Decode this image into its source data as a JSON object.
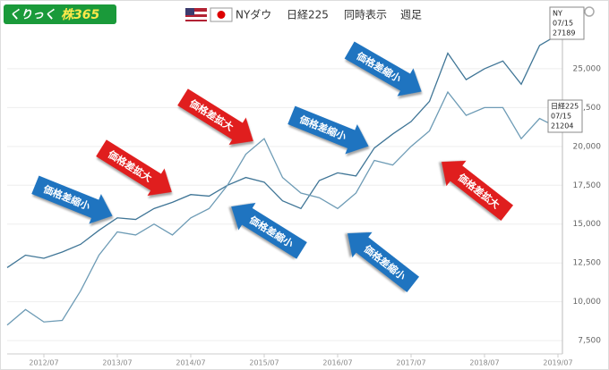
{
  "logo": {
    "left": "くりっく",
    "right": "株365"
  },
  "toolbar": [
    "NYダウ",
    "日経225",
    "同時表示",
    "週足"
  ],
  "chart_data": {
    "type": "line",
    "x": [
      "2012/01",
      "2012/04",
      "2012/07",
      "2012/10",
      "2013/01",
      "2013/04",
      "2013/07",
      "2013/10",
      "2014/01",
      "2014/04",
      "2014/07",
      "2014/10",
      "2015/01",
      "2015/04",
      "2015/07",
      "2015/10",
      "2016/01",
      "2016/04",
      "2016/07",
      "2016/10",
      "2017/01",
      "2017/04",
      "2017/07",
      "2017/10",
      "2018/01",
      "2018/04",
      "2018/07",
      "2018/10",
      "2019/01",
      "2019/04",
      "2019/07"
    ],
    "series": [
      {
        "name": "NY",
        "color": "#3f7596",
        "values": [
          12200,
          13000,
          12800,
          13200,
          13700,
          14600,
          15400,
          15300,
          16000,
          16400,
          16900,
          16800,
          17500,
          18000,
          17700,
          16500,
          16000,
          17800,
          18300,
          18100,
          19900,
          20800,
          21600,
          22900,
          26000,
          24300,
          25000,
          25500,
          24000,
          26500,
          27189
        ]
      },
      {
        "name": "日経225",
        "color": "#6d9bb5",
        "values": [
          8500,
          9500,
          8700,
          8800,
          10700,
          13000,
          14500,
          14300,
          15000,
          14300,
          15400,
          16000,
          17500,
          19500,
          20500,
          18000,
          17000,
          16700,
          16000,
          17000,
          19100,
          18800,
          20000,
          21000,
          23500,
          22000,
          22500,
          22500,
          20500,
          21800,
          21204
        ]
      }
    ],
    "xticks": [
      "2012/07",
      "2013/07",
      "2014/07",
      "2015/07",
      "2016/07",
      "2017/07",
      "2018/07",
      "2019/07"
    ],
    "ylim": [
      6700,
      27700
    ],
    "yticks": [
      {
        "value": 7500,
        "label": "7,500"
      },
      {
        "value": 10000,
        "label": "10,000"
      },
      {
        "value": 12500,
        "label": "12,500"
      },
      {
        "value": 15000,
        "label": "15,000"
      },
      {
        "value": 17500,
        "label": "17,500"
      },
      {
        "value": 20000,
        "label": "20,000"
      },
      {
        "value": 22500,
        "label": "22,500"
      },
      {
        "value": 25000,
        "label": "25,000"
      }
    ],
    "grid": true,
    "end_labels": [
      {
        "name": "NY",
        "date": "07/15",
        "value": 27189
      },
      {
        "name": "日経225",
        "date": "07/15",
        "value": 21204
      }
    ],
    "annotations": [
      {
        "text": "価格差縮小",
        "color": "#1f74c0"
      },
      {
        "text": "価格差拡大",
        "color": "#e01e1e"
      },
      {
        "text": "価格差拡大",
        "color": "#e01e1e"
      },
      {
        "text": "価格差縮小",
        "color": "#1f74c0"
      },
      {
        "text": "価格差縮小",
        "color": "#1f74c0"
      },
      {
        "text": "価格差縮小",
        "color": "#1f74c0"
      },
      {
        "text": "価格差縮小",
        "color": "#1f74c0"
      },
      {
        "text": "価格差拡大",
        "color": "#e01e1e"
      }
    ]
  }
}
